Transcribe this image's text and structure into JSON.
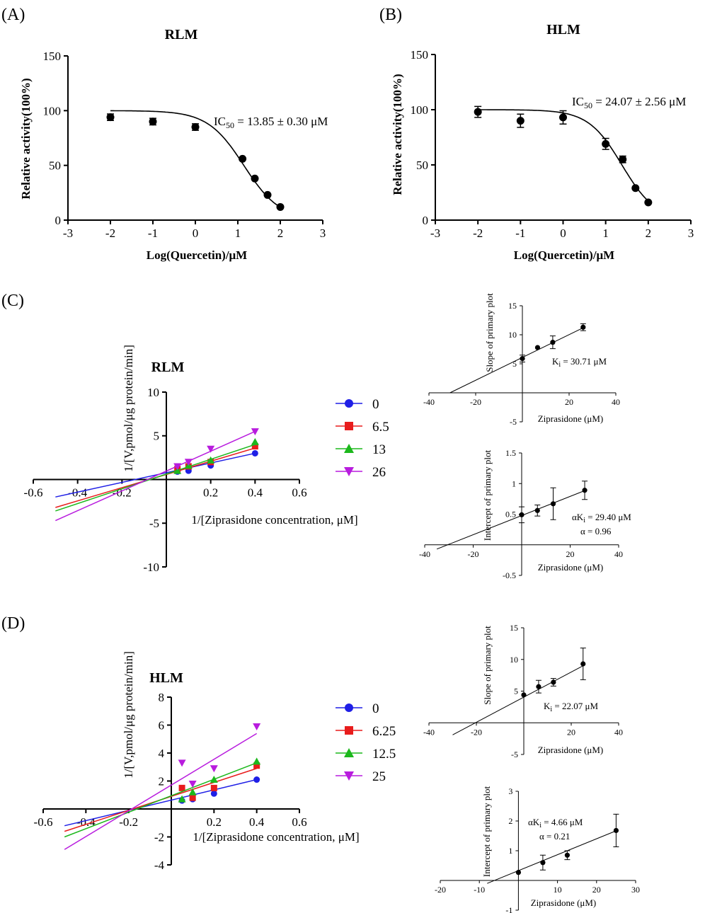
{
  "panel_labels": {
    "A": "(A)",
    "B": "(B)",
    "C": "(C)",
    "D": "(D)"
  },
  "chart_data": [
    {
      "id": "A",
      "type": "scatter",
      "title": "RLM",
      "xlabel": "Log(Quercetin)/μM",
      "ylabel": "Relative activity(100%)",
      "xlim": [
        -3,
        3
      ],
      "ylim": [
        0,
        150
      ],
      "xticks": [
        -3,
        -2,
        -1,
        0,
        1,
        2,
        3
      ],
      "yticks": [
        0,
        50,
        100,
        150
      ],
      "annotation": "IC",
      "annotation_sub": "50",
      "annotation_rest": " = 13.85 ± 0.30 μM",
      "points": [
        {
          "x": -2,
          "y": 94,
          "err": 3
        },
        {
          "x": -1,
          "y": 90,
          "err": 3
        },
        {
          "x": 0,
          "y": 85,
          "err": 3
        },
        {
          "x": 1.11,
          "y": 56,
          "err": 0
        },
        {
          "x": 1.4,
          "y": 38,
          "err": 0
        },
        {
          "x": 1.7,
          "y": 23,
          "err": 0
        },
        {
          "x": 2,
          "y": 12,
          "err": 0
        }
      ],
      "fit": {
        "top": 100,
        "bottom": 0,
        "logIC50": 1.1414,
        "hill": 1.02
      }
    },
    {
      "id": "B",
      "type": "scatter",
      "title": "HLM",
      "xlabel": "Log(Quercetin)/μM",
      "ylabel": "Relative activity(100%)",
      "xlim": [
        -3,
        3
      ],
      "ylim": [
        0,
        150
      ],
      "xticks": [
        -3,
        -2,
        -1,
        0,
        1,
        2,
        3
      ],
      "yticks": [
        0,
        50,
        100,
        150
      ],
      "annotation": "IC",
      "annotation_sub": "50",
      "annotation_rest": " = 24.07 ± 2.56 μM",
      "points": [
        {
          "x": -2,
          "y": 98,
          "err": 5
        },
        {
          "x": -1,
          "y": 90,
          "err": 6
        },
        {
          "x": 0,
          "y": 93,
          "err": 6
        },
        {
          "x": 1,
          "y": 69,
          "err": 5
        },
        {
          "x": 1.4,
          "y": 55,
          "err": 3
        },
        {
          "x": 1.7,
          "y": 29,
          "err": 0
        },
        {
          "x": 2,
          "y": 16,
          "err": 0
        }
      ],
      "fit": {
        "top": 100,
        "bottom": 0,
        "logIC50": 1.3815,
        "hill": 1.1
      }
    },
    {
      "id": "C-main",
      "type": "scatter",
      "title": "RLM",
      "xlabel": "1/[Ziprasidone concentration, μM]",
      "ylabel": "1/[V,pmol/μg protein/min]",
      "xlim": [
        -0.6,
        0.6
      ],
      "ylim": [
        -10,
        10
      ],
      "xticks": [
        -0.6,
        -0.4,
        -0.2,
        0.2,
        0.4,
        0.6
      ],
      "yticks": [
        -10,
        -5,
        5,
        10
      ],
      "x": [
        0.05,
        0.1,
        0.2,
        0.4
      ],
      "series": [
        {
          "name": "0",
          "color": "#1f1fe6",
          "marker": "circle",
          "values": [
            0.9,
            1.0,
            1.6,
            3.0
          ],
          "line": [
            [
              -0.5,
              -2.0
            ],
            [
              0.4,
              3.0
            ]
          ]
        },
        {
          "name": "6.5",
          "color": "#e81c1c",
          "marker": "square",
          "values": [
            1.2,
            1.5,
            2.0,
            3.8
          ],
          "line": [
            [
              -0.5,
              -3.2
            ],
            [
              0.4,
              3.6
            ]
          ]
        },
        {
          "name": "13",
          "color": "#1cb81c",
          "marker": "triangle",
          "values": [
            1.0,
            1.6,
            2.2,
            4.3
          ],
          "line": [
            [
              -0.5,
              -3.6
            ],
            [
              0.4,
              4.0
            ]
          ]
        },
        {
          "name": "26",
          "color": "#b81cde",
          "marker": "triangle-down",
          "values": [
            1.5,
            2.0,
            3.5,
            5.5
          ],
          "line": [
            [
              -0.5,
              -4.7
            ],
            [
              0.4,
              5.5
            ]
          ]
        }
      ]
    },
    {
      "id": "C-slope",
      "type": "scatter",
      "xlabel": "Ziprasidone (μM)",
      "ylabel": "Slope of primary plot",
      "xlim": [
        -40,
        40
      ],
      "ylim": [
        -5,
        15
      ],
      "xticks": [
        -40,
        -20,
        20,
        40
      ],
      "yticks": [
        -5,
        5,
        10,
        15
      ],
      "annotation": "K",
      "annotation_sub": "i",
      "annotation_rest": " = 30.71 μM",
      "points": [
        {
          "x": 0,
          "y": 5.9,
          "err": 0.6
        },
        {
          "x": 6.5,
          "y": 7.8,
          "err": 0
        },
        {
          "x": 13,
          "y": 8.7,
          "err": 1.1
        },
        {
          "x": 26,
          "y": 11.3,
          "err": 0.6
        }
      ],
      "line": [
        [
          -31,
          0
        ],
        [
          27,
          11.4
        ]
      ]
    },
    {
      "id": "C-intercept",
      "type": "scatter",
      "xlabel": "Ziprasidone (μM)",
      "ylabel": "Intercept of primary plot",
      "xlim": [
        -40,
        40
      ],
      "ylim": [
        -0.5,
        1.5
      ],
      "xticks": [
        -40,
        -20,
        20,
        40
      ],
      "yticks": [
        -0.5,
        0.5,
        1.0,
        1.5
      ],
      "annotation": "αK",
      "annotation_sub": "i",
      "annotation_rest": " = 29.40 μM",
      "annotation2": "α = 0.96",
      "points": [
        {
          "x": 0,
          "y": 0.49,
          "err": 0.13
        },
        {
          "x": 6.5,
          "y": 0.56,
          "err": 0.09
        },
        {
          "x": 13,
          "y": 0.67,
          "err": 0.26
        },
        {
          "x": 26,
          "y": 0.89,
          "err": 0.15
        }
      ],
      "line": [
        [
          -35,
          -0.07
        ],
        [
          27,
          0.9
        ]
      ]
    },
    {
      "id": "D-main",
      "type": "scatter",
      "title": "HLM",
      "xlabel": "1/[Ziprasidone concentration, μM]",
      "ylabel": "1/[V,pmol/μg protein/min]",
      "xlim": [
        -0.6,
        0.6
      ],
      "ylim": [
        -4,
        8
      ],
      "xticks": [
        -0.6,
        -0.4,
        -0.2,
        0.2,
        0.4,
        0.6
      ],
      "yticks": [
        -4,
        -2,
        2,
        4,
        6,
        8
      ],
      "x": [
        0.05,
        0.1,
        0.2,
        0.4
      ],
      "series": [
        {
          "name": "0",
          "color": "#1f1fe6",
          "marker": "circle",
          "values": [
            0.6,
            0.7,
            1.1,
            2.1
          ],
          "line": [
            [
              -0.5,
              -1.2
            ],
            [
              0.4,
              2.1
            ]
          ]
        },
        {
          "name": "6.25",
          "color": "#e81c1c",
          "marker": "square",
          "values": [
            1.5,
            0.8,
            1.5,
            3.1
          ],
          "line": [
            [
              -0.5,
              -1.6
            ],
            [
              0.4,
              2.9
            ]
          ]
        },
        {
          "name": "12.5",
          "color": "#1cb81c",
          "marker": "triangle",
          "values": [
            0.7,
            1.2,
            2.1,
            3.4
          ],
          "line": [
            [
              -0.5,
              -2.0
            ],
            [
              0.4,
              3.3
            ]
          ]
        },
        {
          "name": "25",
          "color": "#b81cde",
          "marker": "triangle-down",
          "values": [
            3.3,
            1.8,
            2.9,
            5.9
          ],
          "line": [
            [
              -0.5,
              -2.9
            ],
            [
              0.4,
              5.4
            ]
          ]
        }
      ]
    },
    {
      "id": "D-slope",
      "type": "scatter",
      "xlabel": "Ziprasidone (μM)",
      "ylabel": "Slope of primary plot",
      "xlim": [
        -40,
        40
      ],
      "ylim": [
        -5,
        15
      ],
      "xticks": [
        -40,
        -20,
        20,
        40
      ],
      "yticks": [
        -5,
        5,
        10,
        15
      ],
      "annotation": "K",
      "annotation_sub": "i",
      "annotation_rest": " = 22.07 μM",
      "points": [
        {
          "x": 0,
          "y": 4.4,
          "err": 0
        },
        {
          "x": 6.25,
          "y": 5.7,
          "err": 1.0
        },
        {
          "x": 12.5,
          "y": 6.4,
          "err": 0.6
        },
        {
          "x": 25,
          "y": 9.3,
          "err": 2.5
        }
      ],
      "line": [
        [
          -30,
          -1.9
        ],
        [
          25,
          9.0
        ]
      ]
    },
    {
      "id": "D-intercept",
      "type": "scatter",
      "xlabel": "Ziprasidone (μM)",
      "ylabel": "Intercept of primary plot",
      "xlim": [
        -20,
        30
      ],
      "ylim": [
        -1,
        3
      ],
      "xticks": [
        -20,
        -10,
        10,
        20,
        30
      ],
      "yticks": [
        -1,
        1,
        2,
        3
      ],
      "annotation": "αK",
      "annotation_sub": "i",
      "annotation_rest": " = 4.66 μM",
      "annotation2": "α = 0.21",
      "points": [
        {
          "x": 0,
          "y": 0.27,
          "err": 0
        },
        {
          "x": 6.25,
          "y": 0.6,
          "err": 0.25
        },
        {
          "x": 12.5,
          "y": 0.85,
          "err": 0.15
        },
        {
          "x": 25,
          "y": 1.68,
          "err": 0.55
        }
      ],
      "line": [
        [
          -8,
          -0.1
        ],
        [
          25,
          1.67
        ]
      ]
    }
  ]
}
